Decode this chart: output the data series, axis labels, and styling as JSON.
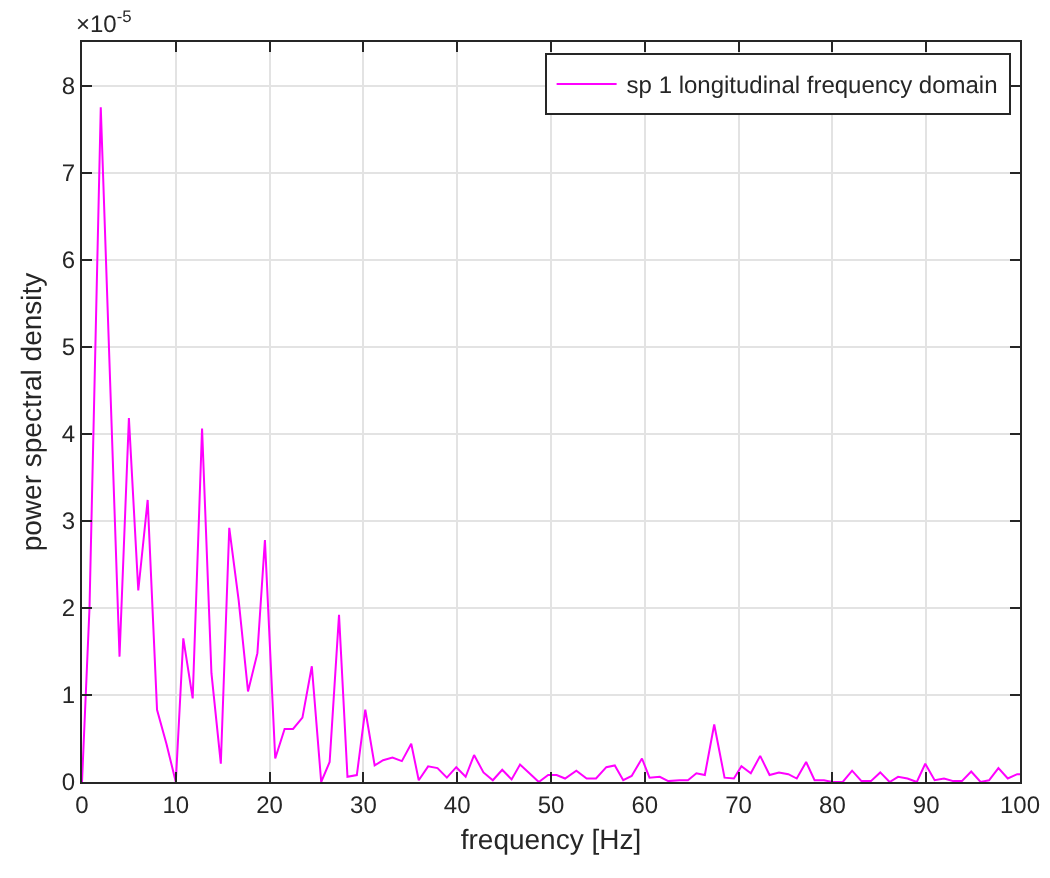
{
  "chart_data": {
    "type": "line",
    "xlabel": "frequency [Hz]",
    "ylabel": "power spectral density",
    "annotations": [
      "×10$^{-5}$"
    ],
    "xlim": [
      0,
      100
    ],
    "xticks": [
      0,
      10,
      20,
      30,
      40,
      50,
      60,
      70,
      80,
      90,
      100
    ],
    "ylim": [
      0,
      8.5
    ],
    "yticks": [
      0,
      1,
      2,
      3,
      4,
      5,
      6,
      7,
      8
    ],
    "grid": true,
    "legend": "top right",
    "series": [
      {
        "name": "sp 1 longitudinal frequency domain",
        "color": "#ff00ff",
        "x": [
          0,
          0.8,
          2,
          4,
          5,
          6,
          7,
          8,
          9,
          10,
          10.8,
          11.8,
          12.8,
          13.8,
          14.8,
          15.7,
          16.7,
          17.7,
          18.7,
          19.5,
          20.6,
          21.6,
          22.5,
          23.5,
          24.5,
          25.5,
          26.4,
          27.4,
          28.3,
          29.3,
          30.2,
          31.2,
          32.1,
          33.1,
          34.1,
          35.1,
          35.9,
          36.9,
          37.9,
          38.9,
          39.9,
          40.9,
          41.8,
          42.8,
          43.8,
          44.8,
          45.8,
          46.7,
          47.7,
          48.7,
          49.7,
          50.6,
          51.5,
          52.7,
          53.8,
          54.8,
          55.9,
          56.8,
          57.7,
          58.6,
          59.7,
          60.5,
          61.6,
          62.5,
          63.7,
          64.6,
          65.5,
          66.4,
          67.4,
          68.5,
          69.5,
          70.3,
          71.3,
          72.3,
          73.3,
          74.3,
          75.3,
          76.2,
          77.2,
          78.1,
          79.1,
          80,
          81.1,
          82.1,
          83.1,
          84.1,
          85.1,
          86.1,
          87,
          88,
          89,
          89.9,
          90.9,
          91.9,
          92.9,
          93.8,
          94.8,
          95.8,
          96.7,
          97.7,
          98.7,
          99.7,
          100
        ],
        "values": [
          0,
          2,
          7.75,
          1.44,
          4.18,
          2.2,
          3.24,
          0.83,
          0.44,
          0,
          1.65,
          0.96,
          4.06,
          1.25,
          0.21,
          2.92,
          2.09,
          1.04,
          1.48,
          2.78,
          0.27,
          0.61,
          0.61,
          0.74,
          1.33,
          0,
          0.23,
          1.92,
          0.06,
          0.08,
          0.83,
          0.19,
          0.25,
          0.28,
          0.24,
          0.44,
          0.02,
          0.18,
          0.16,
          0.05,
          0.17,
          0.06,
          0.31,
          0.11,
          0.02,
          0.14,
          0.03,
          0.2,
          0.1,
          0,
          0.08,
          0.08,
          0.04,
          0.13,
          0.04,
          0.04,
          0.17,
          0.19,
          0.02,
          0.07,
          0.27,
          0.05,
          0.06,
          0.01,
          0.02,
          0.02,
          0.1,
          0.08,
          0.66,
          0.05,
          0.04,
          0.18,
          0.1,
          0.3,
          0.08,
          0.11,
          0.09,
          0.04,
          0.23,
          0.02,
          0.02,
          0,
          0,
          0.13,
          0.01,
          0.01,
          0.11,
          0,
          0.06,
          0.04,
          0,
          0.21,
          0.02,
          0.04,
          0.01,
          0.01,
          0.12,
          0,
          0.02,
          0.16,
          0.04,
          0.09,
          0.09
        ]
      }
    ]
  }
}
